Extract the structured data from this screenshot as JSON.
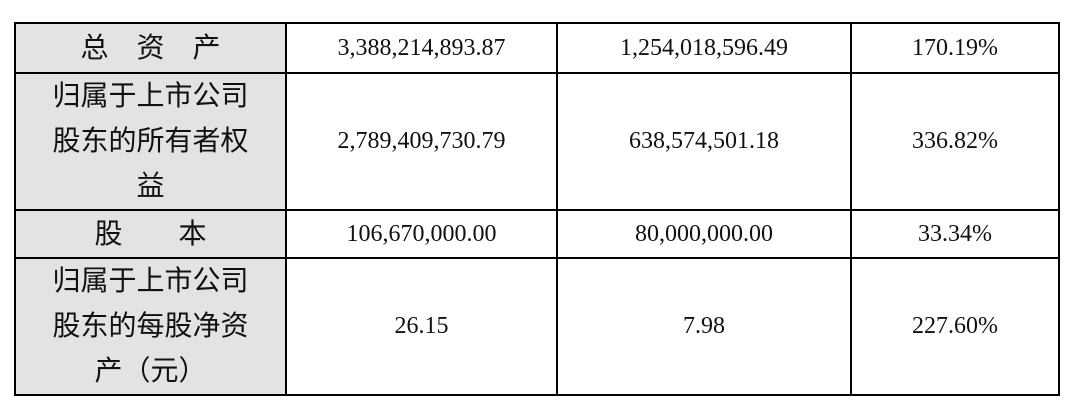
{
  "table": {
    "rows": [
      [
        "总　资　产",
        "3,388,214,893.87",
        "1,254,018,596.49",
        "170.19%"
      ],
      [
        "归属于上市公司股东的所有者权益",
        "2,789,409,730.79",
        "638,574,501.18",
        "336.82%"
      ],
      [
        "股　　本",
        "106,670,000.00",
        "80,000,000.00",
        "33.34%"
      ],
      [
        "归属于上市公司股东的每股净资产（元）",
        "26.15",
        "7.98",
        "227.60%"
      ]
    ]
  }
}
